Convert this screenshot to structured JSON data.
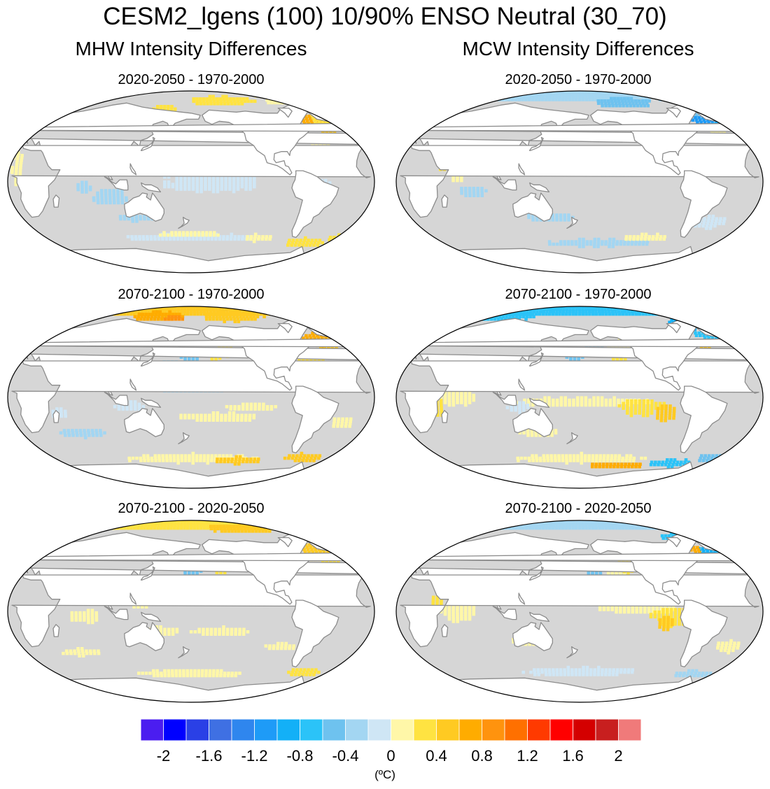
{
  "title": "CESM2_lgens (100) 10/90% ENSO Neutral (30_70)",
  "columns": [
    {
      "label": "MHW Intensity Differences"
    },
    {
      "label": "MCW Intensity Differences"
    }
  ],
  "panels": [
    {
      "id": "mhw-1",
      "column": "MHW",
      "label": "2020-2050 - 1970-2000"
    },
    {
      "id": "mcw-1",
      "column": "MCW",
      "label": "2020-2050 - 1970-2000"
    },
    {
      "id": "mhw-2",
      "column": "MHW",
      "label": "2070-2100 - 1970-2000"
    },
    {
      "id": "mcw-2",
      "column": "MCW",
      "label": "2070-2100 - 1970-2000"
    },
    {
      "id": "mhw-3",
      "column": "MHW",
      "label": "2070-2100 - 2020-2050"
    },
    {
      "id": "mcw-3",
      "column": "MCW",
      "label": "2070-2100 - 2020-2050"
    }
  ],
  "colorbar": {
    "colors": [
      "#4b1df0",
      "#0000ff",
      "#2a40e6",
      "#3f70e3",
      "#2f86ee",
      "#1e9bf7",
      "#13b0f7",
      "#2bc3f8",
      "#6ec2ef",
      "#a3d6f2",
      "#cfe6f5",
      "#fff7a8",
      "#ffe341",
      "#ffca22",
      "#ffac00",
      "#ff930e",
      "#ff7000",
      "#ff3a00",
      "#ff0000",
      "#d40000",
      "#c81f1f",
      "#f07a7a"
    ],
    "tick_labels": [
      "-2",
      "-1.6",
      "-1.2",
      "-0.8",
      "-0.4",
      "0",
      "0.4",
      "0.8",
      "1.2",
      "1.6",
      "2"
    ],
    "units": "(ºC)"
  },
  "map_colors": {
    "ocean": "#d6d6d6",
    "land": "#ffffff",
    "coast": "#8c8c8c"
  }
}
